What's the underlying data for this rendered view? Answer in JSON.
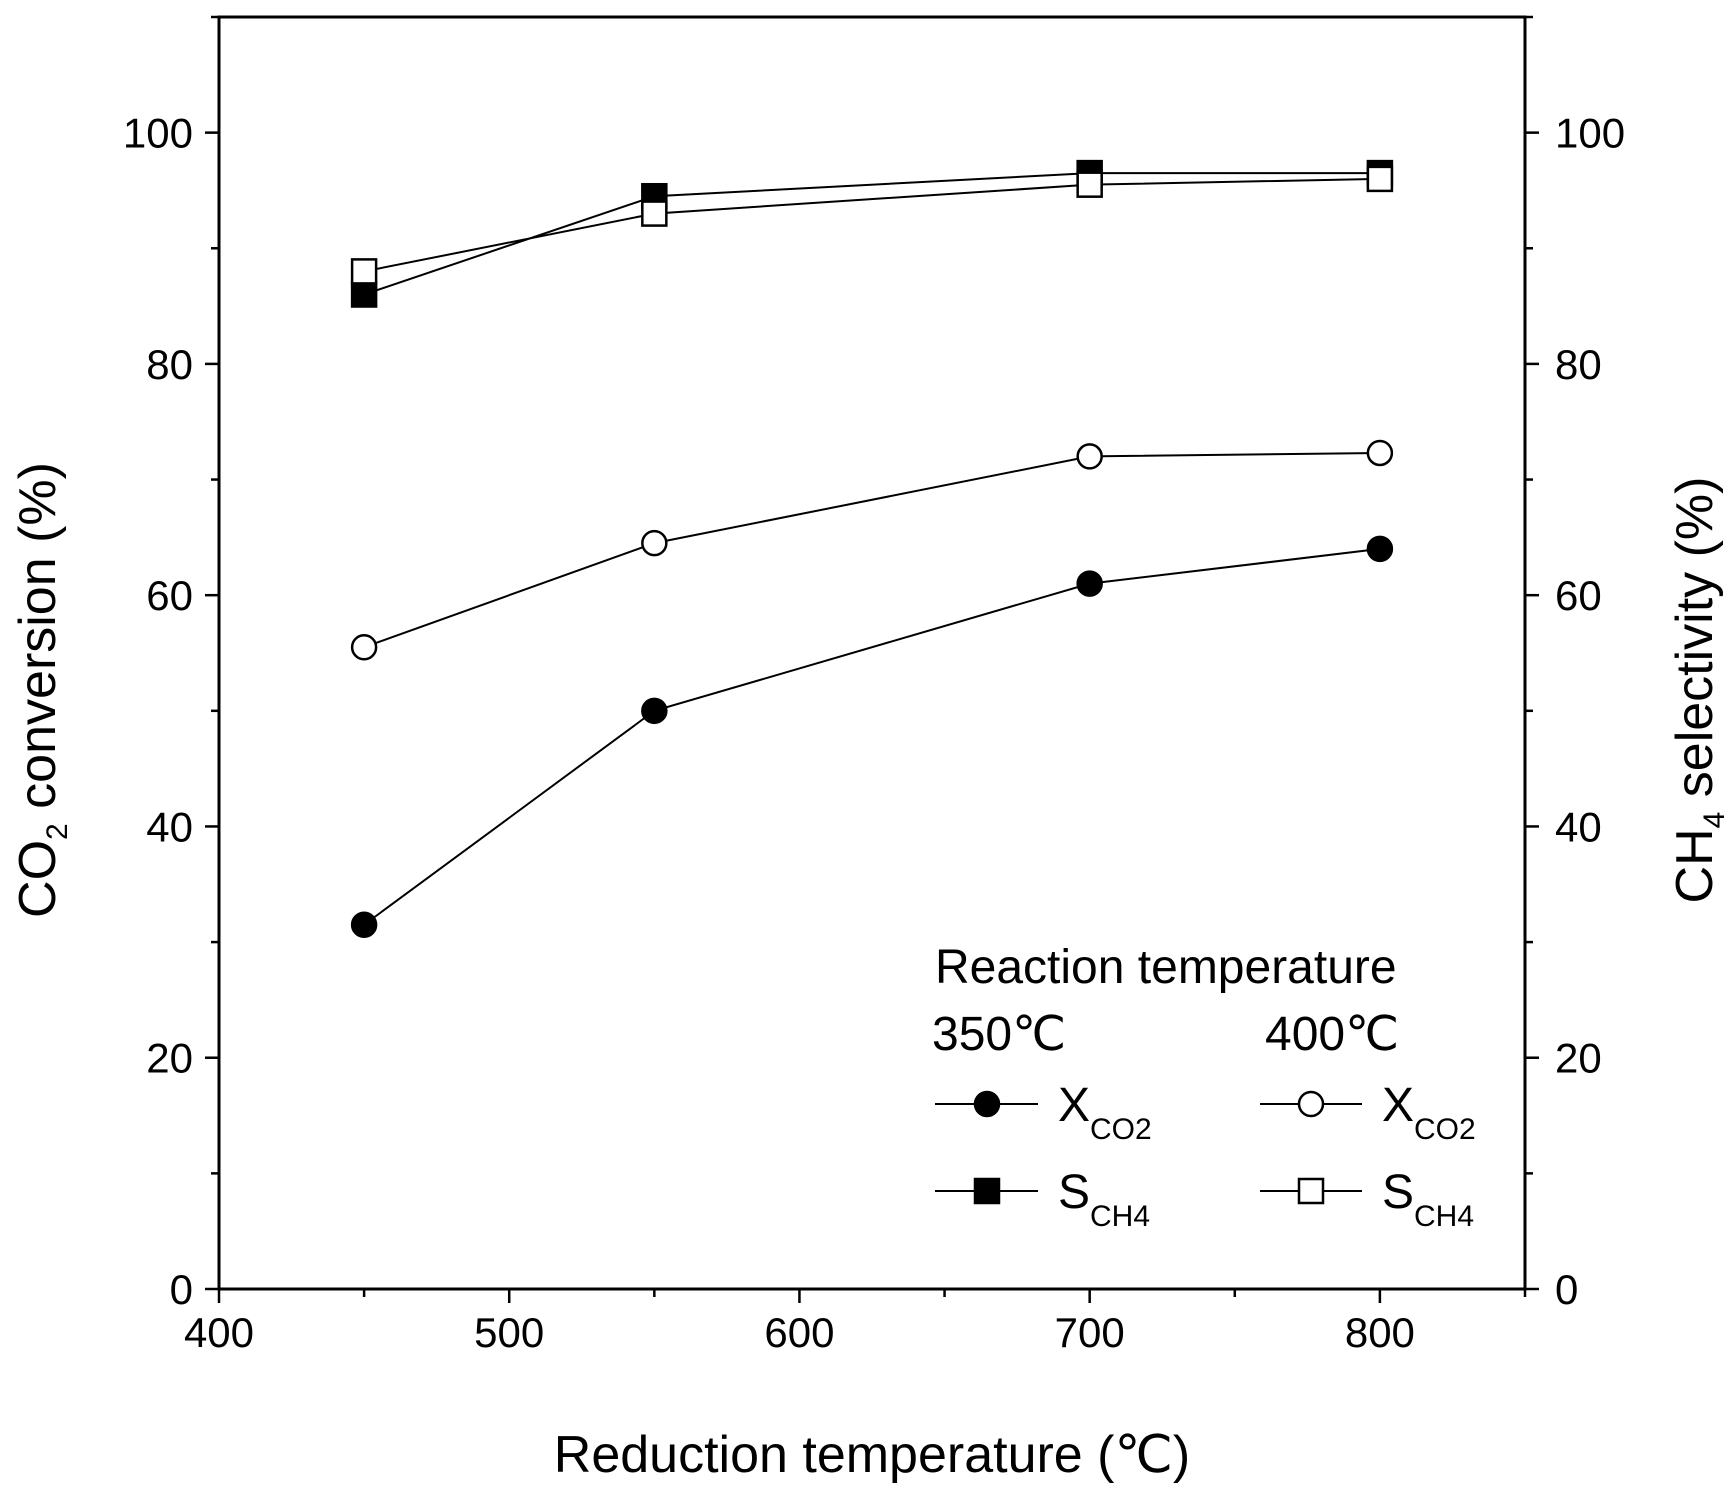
{
  "chart_data": {
    "type": "line",
    "xlabel": "Reduction temperature (℃)",
    "ylabel_left": {
      "main": "CO",
      "sub": "2",
      "rest": " conversion (%)"
    },
    "ylabel_right": {
      "main": "CH",
      "sub": "4",
      "rest": " selectivity (%)"
    },
    "xlim": [
      400,
      850
    ],
    "ylim": [
      0,
      110
    ],
    "x_ticks": [
      400,
      500,
      600,
      700,
      800
    ],
    "y_ticks": [
      0,
      20,
      40,
      60,
      80,
      100
    ],
    "x": [
      450,
      550,
      700,
      800
    ],
    "series": [
      {
        "id": "x350",
        "name": "XCO2 350℃",
        "marker": "circle",
        "filled": true,
        "axis": "left",
        "values": [
          31.5,
          50,
          61,
          64
        ]
      },
      {
        "id": "x400",
        "name": "XCO2 400℃",
        "marker": "circle",
        "filled": false,
        "axis": "left",
        "values": [
          55.5,
          64.5,
          72,
          72.3
        ]
      },
      {
        "id": "s350",
        "name": "SCH4 350℃",
        "marker": "square",
        "filled": true,
        "axis": "right",
        "values": [
          86,
          94.5,
          96.5,
          96.5
        ]
      },
      {
        "id": "s400",
        "name": "SCH4 400℃",
        "marker": "square",
        "filled": false,
        "axis": "right",
        "values": [
          88,
          93,
          95.5,
          96
        ]
      }
    ],
    "legend": {
      "title": "Reaction temperature",
      "col1_header": "350℃",
      "col2_header": "400℃",
      "x_label": "X",
      "x_sub": "CO2",
      "s_label": "S",
      "s_sub": "CH4"
    }
  }
}
